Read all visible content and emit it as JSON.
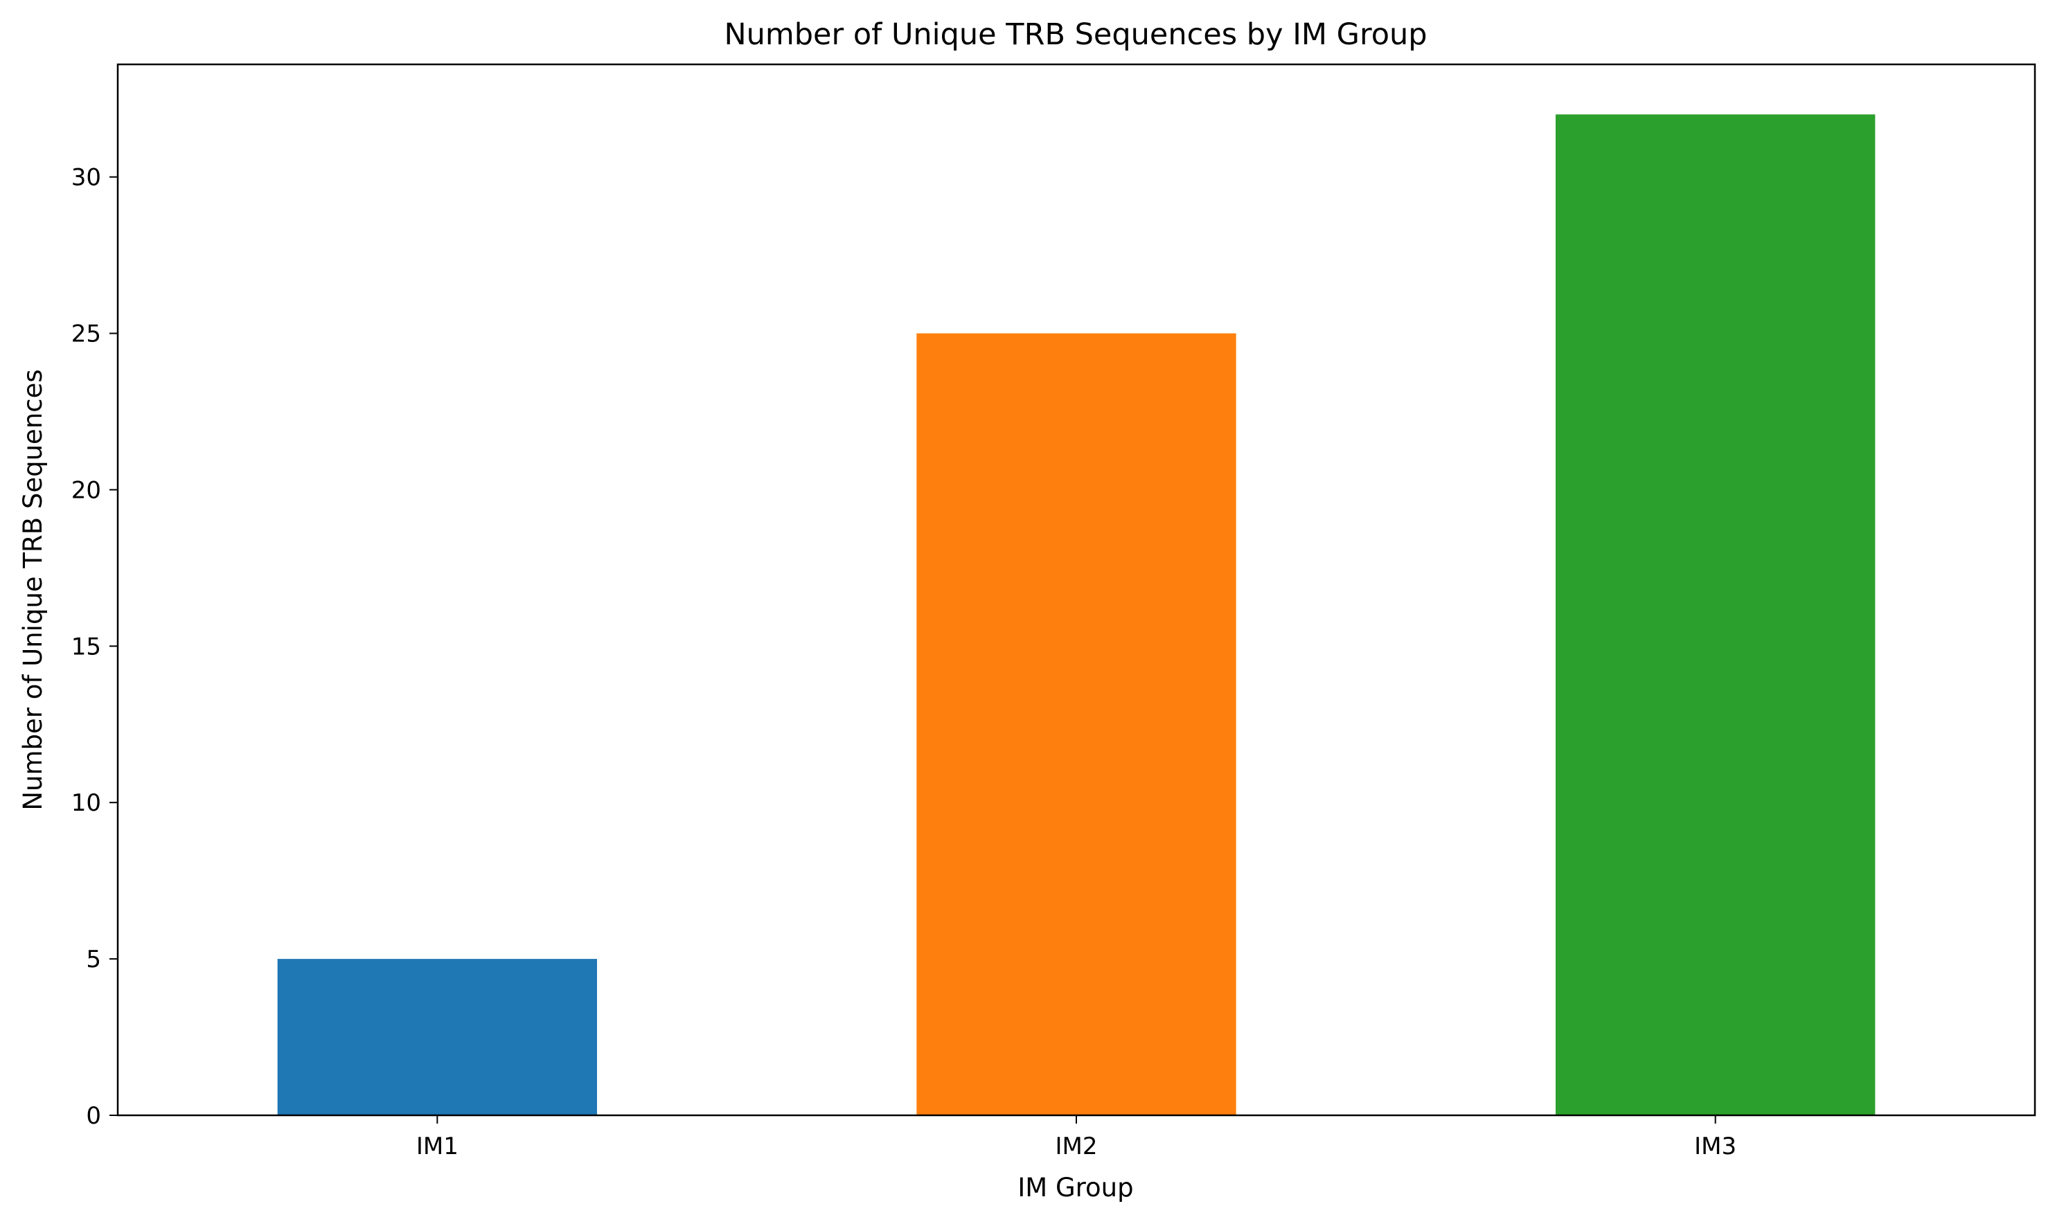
{
  "chart_data": {
    "type": "bar",
    "title": "Number of Unique TRB Sequences by IM Group",
    "xlabel": "IM Group",
    "ylabel": "Number of Unique TRB Sequences",
    "categories": [
      "IM1",
      "IM2",
      "IM3"
    ],
    "values": [
      5,
      25,
      32
    ],
    "colors": [
      "#1f77b4",
      "#ff7f0e",
      "#2ca02c"
    ],
    "ylim": [
      0,
      33.6
    ],
    "yticks": [
      0,
      5,
      10,
      15,
      20,
      25,
      30
    ],
    "grid": false,
    "legend": "none"
  }
}
